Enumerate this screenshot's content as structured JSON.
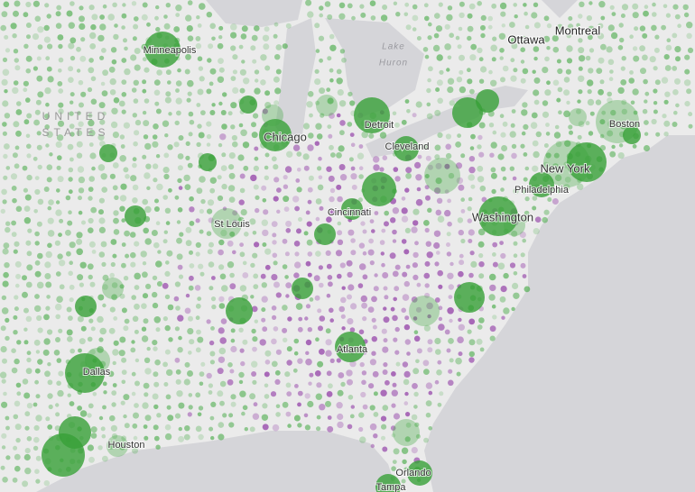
{
  "map": {
    "region_label": [
      "UNITED",
      "STATES"
    ],
    "lake_label": [
      "Lake",
      "Huron"
    ],
    "country_cities": [
      "Ottawa",
      "Montreal"
    ],
    "cities": [
      "Minneapolis",
      "Detroit",
      "Boston",
      "Chicago",
      "Cleveland",
      "New York",
      "Philadelphia",
      "Cincinnati",
      "St Louis",
      "Washington",
      "Atlanta",
      "Dallas",
      "Houston",
      "Orlando",
      "Tampa"
    ]
  }
}
